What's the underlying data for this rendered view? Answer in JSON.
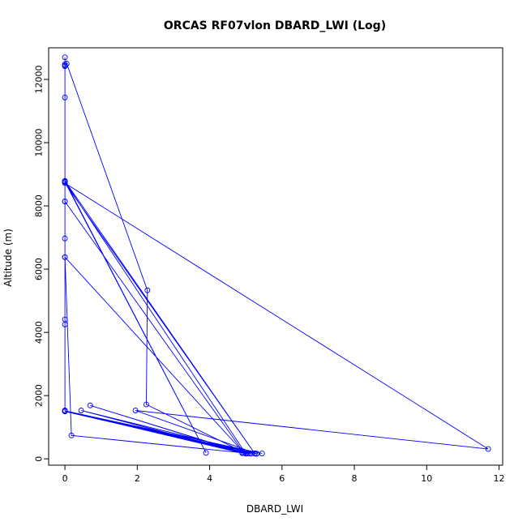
{
  "chart_data": {
    "type": "line",
    "title": "ORCAS RF07vlon DBARD_LWI (Log)",
    "xlabel": "DBARD_LWI",
    "ylabel": "Altitude (m)",
    "xlim": [
      -0.45,
      12.1
    ],
    "ylim": [
      -200,
      13000
    ],
    "xticks": [
      0,
      2,
      4,
      6,
      8,
      10,
      12
    ],
    "yticks": [
      0,
      2000,
      4000,
      6000,
      8000,
      10000,
      12000
    ],
    "grid": false,
    "markers": "open circles",
    "series_color": "#0000ff",
    "series": [
      {
        "points": [
          [
            0.0,
            12700
          ],
          [
            0.0,
            12480
          ],
          [
            0.0,
            12420
          ],
          [
            0.0,
            11430
          ],
          [
            0.0,
            8780
          ],
          [
            0.0,
            8760
          ],
          [
            0.0,
            8140
          ],
          [
            0.0,
            6970
          ],
          [
            0.0,
            6380
          ],
          [
            0.0,
            4410
          ],
          [
            0.0,
            4250
          ],
          [
            0.0,
            1530
          ],
          [
            0.0,
            1510
          ],
          [
            4.9,
            180
          ],
          [
            0.0,
            1520
          ],
          [
            5.05,
            170
          ],
          [
            0.0,
            1500
          ],
          [
            5.15,
            165
          ],
          [
            0.0,
            1515
          ],
          [
            5.25,
            175
          ],
          [
            0.0,
            1505
          ],
          [
            5.3,
            160
          ],
          [
            0.0,
            1520
          ],
          [
            5.45,
            170
          ],
          [
            0.0,
            1510
          ],
          [
            5.0,
            165
          ],
          [
            0.0,
            8760
          ],
          [
            3.9,
            190
          ],
          [
            0.0,
            8790
          ],
          [
            5.25,
            165
          ],
          [
            0.0,
            8720
          ],
          [
            11.7,
            310
          ],
          [
            1.95,
            1530
          ],
          [
            5.3,
            165
          ],
          [
            0.45,
            1530
          ],
          [
            4.9,
            200
          ],
          [
            0.7,
            1690
          ],
          [
            5.0,
            175
          ],
          [
            2.25,
            1720
          ],
          [
            2.28,
            5330
          ],
          [
            0.05,
            12500
          ],
          [
            0.0,
            12440
          ],
          [
            0.0,
            8140
          ],
          [
            4.95,
            185
          ],
          [
            0.0,
            6380
          ],
          [
            0.18,
            740
          ],
          [
            5.1,
            170
          ]
        ]
      }
    ]
  }
}
